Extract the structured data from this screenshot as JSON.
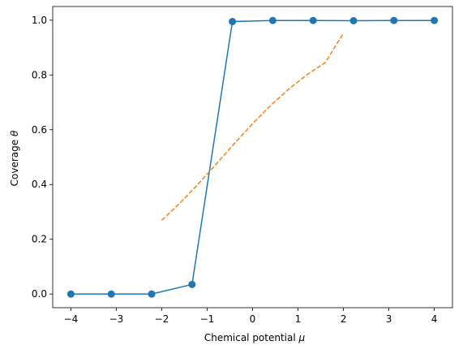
{
  "chart_data": {
    "type": "line",
    "title": "",
    "xlabel_prefix": "Chemical potential ",
    "xlabel_symbol": "μ",
    "ylabel_prefix": "Coverage ",
    "ylabel_symbol": "θ",
    "xlim": [
      -4.4,
      4.4
    ],
    "ylim": [
      -0.05,
      1.05
    ],
    "xticks": [
      -4,
      -3,
      -2,
      -1,
      0,
      1,
      2,
      3,
      4
    ],
    "xtick_labels": [
      "−4",
      "−3",
      "−2",
      "−1",
      "0",
      "1",
      "2",
      "3",
      "4"
    ],
    "yticks": [
      0.0,
      0.2,
      0.4,
      0.6,
      0.8,
      1.0
    ],
    "ytick_labels": [
      "0.0",
      "0.2",
      "0.4",
      "0.6",
      "0.8",
      "1.0"
    ],
    "grid": false,
    "legend": "none",
    "series": [
      {
        "style": "solid-markers",
        "color": "#1f77b4",
        "x": [
          -4.0,
          -3.111,
          -2.222,
          -1.333,
          -0.444,
          0.444,
          1.333,
          2.222,
          3.111,
          4.0
        ],
        "y": [
          0.0,
          0.0,
          0.0,
          0.035,
          0.995,
          0.999,
          0.999,
          0.998,
          0.999,
          0.999
        ]
      },
      {
        "style": "dashed",
        "color": "#ff7f0e",
        "x": [
          -2.0,
          -1.6,
          -1.2,
          -0.8,
          -0.4,
          0.0,
          0.4,
          0.8,
          1.2,
          1.6,
          2.0
        ],
        "y": [
          0.269,
          0.332,
          0.401,
          0.475,
          0.55,
          0.622,
          0.689,
          0.749,
          0.801,
          0.845,
          0.953
        ]
      }
    ]
  }
}
